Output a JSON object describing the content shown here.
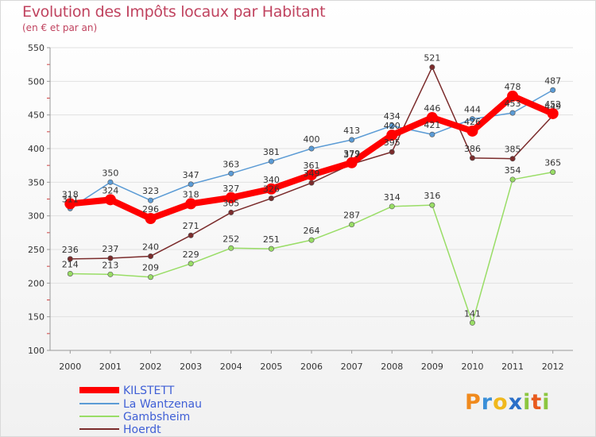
{
  "header": {
    "title": "Evolution des Impôts locaux par Habitant",
    "subtitle": "(en € et par an)"
  },
  "logo": {
    "p": "P",
    "r": "r",
    "o": "o",
    "x": "x",
    "i1": "i",
    "t": "t",
    "i2": "i"
  },
  "chart_data": {
    "type": "line",
    "title": "Evolution des Impôts locaux par Habitant",
    "subtitle": "(en € et par an)",
    "xlabel": "",
    "ylabel": "",
    "ylim": [
      100,
      550
    ],
    "yticks": [
      100,
      150,
      200,
      250,
      300,
      350,
      400,
      450,
      500,
      550
    ],
    "x": [
      "2000",
      "2001",
      "2002",
      "2003",
      "2004",
      "2005",
      "2006",
      "2007",
      "2008",
      "2009",
      "2010",
      "2011",
      "2012"
    ],
    "legend_position": "bottom-left",
    "series": [
      {
        "name": "KILSTETT",
        "color": "#ff0000",
        "values": [
          318,
          324,
          296,
          318,
          327,
          340,
          361,
          379,
          420,
          446,
          426,
          478,
          452
        ]
      },
      {
        "name": "La Wantzenau",
        "color": "#5b9bd5",
        "values": [
          311,
          350,
          323,
          347,
          363,
          381,
          400,
          413,
          434,
          421,
          444,
          453,
          487
        ]
      },
      {
        "name": "Gambsheim",
        "color": "#99dd66",
        "values": [
          214,
          213,
          209,
          229,
          252,
          251,
          264,
          287,
          314,
          316,
          141,
          354,
          365
        ]
      },
      {
        "name": "Hoerdt",
        "color": "#7b2c2c",
        "values": [
          236,
          237,
          240,
          271,
          305,
          326,
          349,
          377,
          395,
          521,
          386,
          385,
          449
        ]
      }
    ]
  }
}
